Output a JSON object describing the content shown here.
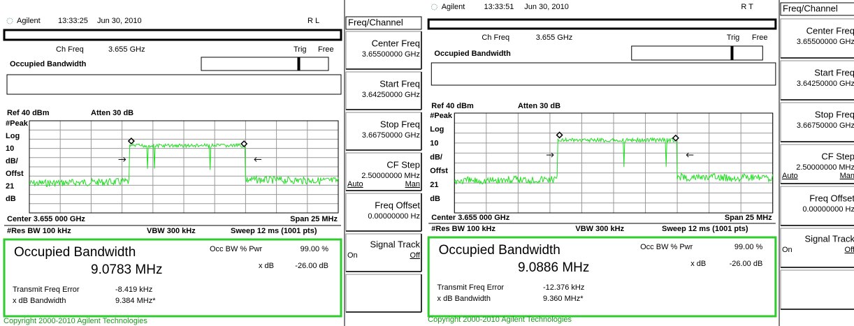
{
  "screens": [
    {
      "header": {
        "brand": "Agilent",
        "time": "13:33:25",
        "date": "Jun 30, 2010",
        "status": "R L"
      },
      "ch_freq": {
        "label": "Ch Freq",
        "value": "3.655 GHz"
      },
      "trig": "Trig",
      "trig_mode": "Free",
      "measurement": "Occupied Bandwidth",
      "ref": "Ref 40 dBm",
      "atten": "Atten 30 dB",
      "scale_labels": [
        "#Peak",
        "Log",
        "10",
        "dB/",
        "Offst",
        "21",
        "dB"
      ],
      "center": "Center 3.655 000 GHz",
      "span": "Span 25 MHz",
      "res_bw": "#Res BW 100 kHz",
      "vbw": "VBW 300 kHz",
      "sweep": "Sweep 12 ms (1001 pts)",
      "results": {
        "title": "Occupied Bandwidth",
        "bandwidth": "9.0783 MHz",
        "rows": [
          {
            "label": "Occ BW % Pwr",
            "value": "99.00 %"
          },
          {
            "label": "x dB",
            "value": "-26.00 dB"
          },
          {
            "label": "Transmit Freq Error",
            "value": "-8.419 kHz"
          },
          {
            "label": "x dB Bandwidth",
            "value": "9.384 MHz*"
          }
        ]
      },
      "copyright": "Copyright 2000-2010 Agilent Technologies"
    },
    {
      "header": {
        "brand": "Agilent",
        "time": "13:33:51",
        "date": "Jun 30, 2010",
        "status": "R  T"
      },
      "ch_freq": {
        "label": "Ch Freq",
        "value": "3.655 GHz"
      },
      "trig": "Trig",
      "trig_mode": "Free",
      "measurement": "Occupied Bandwidth",
      "ref": "Ref 40 dBm",
      "atten": "Atten 30 dB",
      "scale_labels": [
        "#Peak",
        "Log",
        "10",
        "dB/",
        "Offst",
        "21",
        "dB"
      ],
      "center": "Center 3.655 000 GHz",
      "span": "Span 25 MHz",
      "res_bw": "#Res BW 100 kHz",
      "vbw": "VBW 300 kHz",
      "sweep": "Sweep 12 ms (1001 pts)",
      "results": {
        "title": "Occupied Bandwidth",
        "bandwidth": "9.0886 MHz",
        "rows": [
          {
            "label": "Occ BW % Pwr",
            "value": "99.00 %"
          },
          {
            "label": "x dB",
            "value": "-26.00 dB"
          },
          {
            "label": "Transmit Freq Error",
            "value": "-12.376 kHz"
          },
          {
            "label": "x dB Bandwidth",
            "value": "9.360 MHz*"
          }
        ]
      },
      "copyright": "Copyright 2000-2010 Agilent Technologies"
    }
  ],
  "menus": [
    {
      "title": "Freq/Channel",
      "keys": [
        {
          "label": "Center Freq",
          "value": "3.65500000 GHz"
        },
        {
          "label": "Start Freq",
          "value": "3.64250000 GHz"
        },
        {
          "label": "Stop Freq",
          "value": "3.66750000 GHz"
        },
        {
          "label": "CF Step",
          "value": "2.50000000 MHz",
          "options": [
            "Auto",
            "Man"
          ]
        },
        {
          "label": "Freq Offset",
          "value": "0.00000000  Hz"
        },
        {
          "label": "Signal Track",
          "options": [
            "On",
            "Off"
          ]
        }
      ]
    },
    {
      "title": "Freq/Channel",
      "keys": [
        {
          "label": "Center Freq",
          "value": "3.65500000 GHz"
        },
        {
          "label": "Start Freq",
          "value": "3.64250000 GHz"
        },
        {
          "label": "Stop Freq",
          "value": "3.66750000 GHz"
        },
        {
          "label": "CF Step",
          "value": "2.50000000 MHz",
          "options": [
            "Auto",
            "Man"
          ]
        },
        {
          "label": "Freq Offset",
          "value": "0.00000000  Hz"
        },
        {
          "label": "Signal Track",
          "options": [
            "On",
            "Off"
          ]
        }
      ]
    }
  ]
}
